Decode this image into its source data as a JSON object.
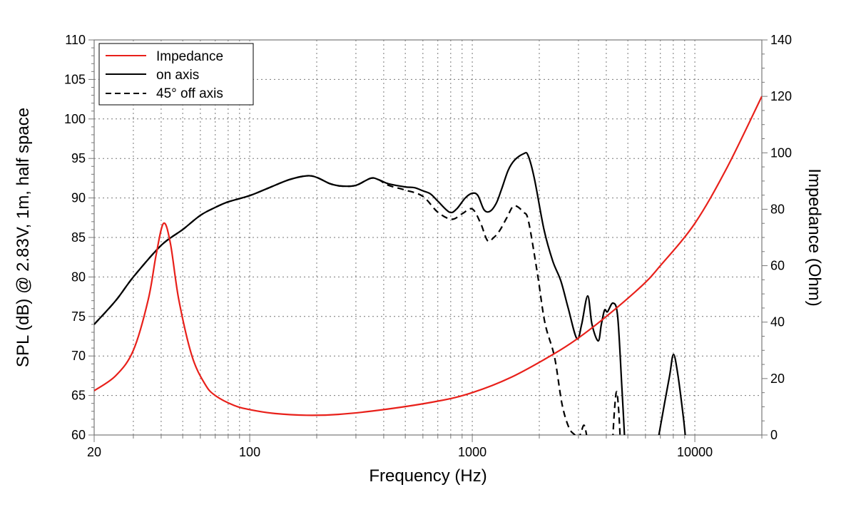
{
  "chart_data": {
    "type": "line",
    "title": "",
    "xlabel": "Frequency (Hz)",
    "ylabel": "SPL (dB) @ 2.83V, 1m, half space",
    "y2label": "Impedance (Ohm)",
    "xscale": "log",
    "xlim": [
      20,
      20000
    ],
    "ylim": [
      60,
      110
    ],
    "y2lim": [
      0,
      140
    ],
    "xticks": [
      20,
      100,
      1000,
      10000
    ],
    "xtick_labels": [
      "20",
      "100",
      "1000",
      "10000"
    ],
    "yticks": [
      60,
      65,
      70,
      75,
      80,
      85,
      90,
      95,
      100,
      105,
      110
    ],
    "ytick_labels": [
      "60",
      "65",
      "70",
      "75",
      "80",
      "85",
      "90",
      "95",
      "100",
      "105",
      "110"
    ],
    "y2ticks": [
      0,
      20,
      40,
      60,
      80,
      100,
      120,
      140
    ],
    "y2tick_labels": [
      "0",
      "20",
      "40",
      "60",
      "80",
      "100",
      "120",
      "140"
    ],
    "grid": true,
    "legend_position": "top-left",
    "colors": {
      "impedance": "#e8201a",
      "on_axis": "#000000",
      "off_axis": "#000000"
    },
    "series": [
      {
        "name": "Impedance",
        "axis": "right",
        "style": "solid",
        "color": "#e8201a",
        "x": [
          20,
          25,
          30,
          35,
          38,
          41,
          44,
          48,
          55,
          63,
          70,
          85,
          100,
          130,
          180,
          250,
          400,
          700,
          1000,
          1500,
          2300,
          2950,
          4000,
          5800,
          7000,
          10000,
          14000,
          20000
        ],
        "y": [
          15.7,
          21,
          30,
          48,
          64,
          75,
          68,
          48,
          28,
          18,
          14,
          10.5,
          9,
          7.6,
          7,
          7.3,
          9,
          12,
          15,
          20.5,
          28.5,
          34,
          42,
          53,
          60,
          75,
          95,
          120
        ]
      },
      {
        "name": "on axis",
        "axis": "left",
        "style": "solid",
        "color": "#000000",
        "segments": [
          {
            "x": [
              20,
              25,
              30,
              40,
              50,
              60,
              70,
              80,
              100,
              120,
              150,
              180,
              200,
              230,
              260,
              300,
              350,
              380,
              420,
              500,
              550,
              600,
              650,
              700,
              790,
              850,
              930,
              1000,
              1060,
              1130,
              1200,
              1280,
              1350,
              1450,
              1550,
              1700,
              1780,
              1900,
              2100,
              2300,
              2500,
              2700,
              2950,
              3100,
              3300,
              3450,
              3680,
              3800,
              3930,
              4050,
              4290,
              4500,
              4700,
              4870
            ],
            "y": [
              74,
              77,
              80,
              84,
              86,
              87.8,
              88.8,
              89.5,
              90.3,
              91.2,
              92.3,
              92.8,
              92.6,
              91.8,
              91.5,
              91.6,
              92.5,
              92.3,
              91.8,
              91.4,
              91.3,
              90.9,
              90.5,
              89.6,
              88.2,
              88.6,
              90,
              90.6,
              90.3,
              88.5,
              88.3,
              89.3,
              91,
              93.5,
              94.8,
              95.6,
              95.4,
              92.5,
              86,
              82,
              79.5,
              76,
              72.2,
              74,
              77.6,
              74,
              71.9,
              74,
              75.8,
              75.6,
              76.7,
              75,
              66,
              58
            ]
          },
          {
            "x": [
              6700,
              7200,
              7700,
              8020,
              8400,
              8900,
              9200
            ],
            "y": [
              58,
              63,
              67.5,
              70.2,
              67.5,
              62,
              58
            ]
          }
        ]
      },
      {
        "name": "45° off axis",
        "axis": "left",
        "style": "dashed",
        "color": "#000000",
        "segments": [
          {
            "x": [
              20,
              25,
              30,
              40,
              50,
              60,
              70,
              80,
              100,
              120,
              150,
              180,
              200,
              230,
              260,
              300,
              350,
              380,
              420,
              500,
              600,
              700,
              808,
              900,
              1000,
              1090,
              1170,
              1250,
              1330,
              1430,
              1540,
              1700,
              1790,
              1960,
              2120,
              2340,
              2530,
              2720,
              2890,
              3000,
              3100,
              3200,
              3350
            ],
            "y": [
              74,
              77,
              80,
              84,
              86,
              87.8,
              88.8,
              89.5,
              90.3,
              91.2,
              92.3,
              92.8,
              92.6,
              91.8,
              91.5,
              91.6,
              92.5,
              92.3,
              91.6,
              91,
              90.2,
              88.2,
              87.3,
              88,
              88.6,
              86.8,
              84.6,
              85,
              85.9,
              87.5,
              89,
              88.2,
              87,
              80.5,
              74.2,
              69.9,
              63.9,
              60.9,
              60,
              59.5,
              60.6,
              61.1,
              58
            ]
          },
          {
            "x": [
              4250,
              4350,
              4450,
              4550,
              4650
            ],
            "y": [
              58,
              63,
              65.5,
              63,
              58
            ]
          }
        ]
      }
    ]
  }
}
